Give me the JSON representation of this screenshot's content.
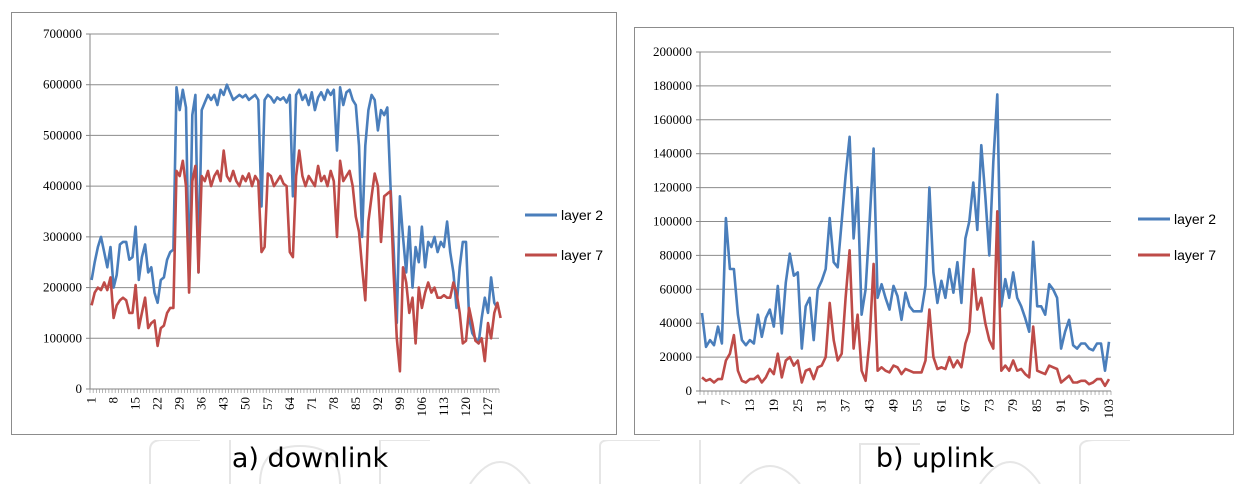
{
  "captions": {
    "a": "a) downlink",
    "b": "b) uplink"
  },
  "colors": {
    "layer2": "#4a7ebb",
    "layer7": "#be4b48",
    "grid": "#8c8c8c",
    "axis": "#868686"
  },
  "chart_data": [
    {
      "type": "line",
      "caption": "a) downlink",
      "ylim": [
        0,
        700000
      ],
      "y_ticks": [
        "0",
        "100000",
        "200000",
        "300000",
        "400000",
        "500000",
        "600000",
        "700000"
      ],
      "x_ticks": [
        "1",
        "8",
        "15",
        "22",
        "29",
        "36",
        "43",
        "50",
        "57",
        "64",
        "71",
        "78",
        "85",
        "92",
        "99",
        "106",
        "113",
        "120",
        "127"
      ],
      "x_range": [
        1,
        130
      ],
      "grid": true,
      "legend_position": "right",
      "series": [
        {
          "name": "layer 2",
          "color": "#4a7ebb",
          "values": [
            215000,
            250000,
            280000,
            300000,
            270000,
            240000,
            280000,
            200000,
            225000,
            285000,
            290000,
            290000,
            255000,
            260000,
            320000,
            215000,
            260000,
            285000,
            230000,
            240000,
            190000,
            170000,
            215000,
            220000,
            255000,
            270000,
            275000,
            595000,
            550000,
            590000,
            555000,
            200000,
            540000,
            580000,
            230000,
            550000,
            565000,
            580000,
            570000,
            580000,
            560000,
            590000,
            580000,
            600000,
            585000,
            570000,
            575000,
            580000,
            575000,
            580000,
            570000,
            575000,
            580000,
            570000,
            360000,
            570000,
            580000,
            575000,
            565000,
            575000,
            570000,
            575000,
            565000,
            580000,
            380000,
            580000,
            590000,
            570000,
            580000,
            560000,
            585000,
            550000,
            575000,
            585000,
            570000,
            590000,
            580000,
            590000,
            470000,
            595000,
            560000,
            585000,
            590000,
            570000,
            560000,
            480000,
            300000,
            480000,
            550000,
            580000,
            570000,
            510000,
            550000,
            540000,
            555000,
            400000,
            280000,
            130000,
            380000,
            300000,
            230000,
            320000,
            200000,
            280000,
            250000,
            320000,
            240000,
            290000,
            280000,
            300000,
            270000,
            290000,
            280000,
            330000,
            270000,
            230000,
            160000,
            240000,
            290000,
            290000,
            140000,
            110000,
            100000,
            90000,
            140000,
            180000,
            150000,
            220000,
            170000,
            160000
          ]
        },
        {
          "name": "layer 7",
          "color": "#be4b48",
          "values": [
            165000,
            190000,
            200000,
            195000,
            210000,
            195000,
            220000,
            140000,
            165000,
            175000,
            180000,
            175000,
            150000,
            150000,
            205000,
            120000,
            150000,
            180000,
            120000,
            130000,
            135000,
            85000,
            120000,
            125000,
            150000,
            160000,
            160000,
            430000,
            420000,
            450000,
            400000,
            190000,
            410000,
            440000,
            230000,
            420000,
            410000,
            430000,
            400000,
            420000,
            430000,
            410000,
            470000,
            420000,
            410000,
            430000,
            410000,
            400000,
            420000,
            410000,
            425000,
            400000,
            420000,
            410000,
            270000,
            280000,
            425000,
            420000,
            400000,
            410000,
            420000,
            405000,
            400000,
            270000,
            260000,
            420000,
            470000,
            420000,
            400000,
            420000,
            410000,
            400000,
            440000,
            410000,
            420000,
            400000,
            430000,
            410000,
            300000,
            450000,
            410000,
            420000,
            430000,
            400000,
            340000,
            310000,
            240000,
            175000,
            330000,
            380000,
            425000,
            400000,
            290000,
            380000,
            385000,
            390000,
            230000,
            100000,
            35000,
            240000,
            210000,
            150000,
            180000,
            90000,
            200000,
            160000,
            190000,
            210000,
            190000,
            200000,
            180000,
            180000,
            185000,
            180000,
            180000,
            210000,
            190000,
            150000,
            90000,
            95000,
            160000,
            130000,
            95000,
            90000,
            100000,
            55000,
            130000,
            100000,
            150000,
            170000,
            140000
          ]
        }
      ]
    },
    {
      "type": "line",
      "caption": "b) uplink",
      "ylim": [
        0,
        200000
      ],
      "y_ticks": [
        "0",
        "20000",
        "40000",
        "60000",
        "80000",
        "100000",
        "120000",
        "140000",
        "160000",
        "180000",
        "200000"
      ],
      "x_ticks": [
        "1",
        "7",
        "13",
        "19",
        "25",
        "31",
        "37",
        "43",
        "49",
        "55",
        "61",
        "67",
        "73",
        "79",
        "85",
        "91",
        "97",
        "103"
      ],
      "x_range": [
        1,
        103
      ],
      "grid": true,
      "legend_position": "right",
      "series": [
        {
          "name": "layer 2",
          "color": "#4a7ebb",
          "values": [
            46000,
            26000,
            30000,
            27000,
            38000,
            28000,
            102000,
            72000,
            72000,
            45000,
            30000,
            27000,
            30000,
            28000,
            45000,
            32000,
            43000,
            48000,
            38000,
            62000,
            34000,
            64000,
            81000,
            68000,
            70000,
            25000,
            50000,
            55000,
            30000,
            60000,
            65000,
            72000,
            102000,
            76000,
            73000,
            100000,
            127000,
            150000,
            90000,
            120000,
            45000,
            60000,
            100000,
            143000,
            55000,
            63000,
            55000,
            48000,
            62000,
            56000,
            42000,
            58000,
            50000,
            47000,
            47000,
            47000,
            62000,
            120000,
            70000,
            52000,
            65000,
            55000,
            72000,
            58000,
            76000,
            52000,
            90000,
            100000,
            123000,
            95000,
            145000,
            115000,
            80000,
            135000,
            175000,
            50000,
            66000,
            55000,
            70000,
            55000,
            50000,
            43000,
            35000,
            88000,
            50000,
            50000,
            45000,
            63000,
            60000,
            55000,
            25000,
            35000,
            42000,
            27000,
            25000,
            28000,
            28000,
            25000,
            24000,
            28000,
            28000,
            12000,
            29000
          ]
        },
        {
          "name": "layer 7",
          "color": "#be4b48",
          "values": [
            8000,
            6000,
            7000,
            5000,
            7000,
            7000,
            18000,
            22000,
            33000,
            12000,
            6000,
            5000,
            7000,
            7000,
            9000,
            5000,
            8000,
            13000,
            10000,
            22000,
            8000,
            18000,
            20000,
            15000,
            18000,
            5000,
            12000,
            13000,
            7000,
            14000,
            15000,
            20000,
            52000,
            30000,
            18000,
            22000,
            55000,
            83000,
            25000,
            45000,
            12000,
            6000,
            30000,
            75000,
            12000,
            14000,
            12000,
            11000,
            15000,
            14000,
            10000,
            13000,
            12000,
            11000,
            11000,
            11000,
            18000,
            48000,
            20000,
            13000,
            14000,
            13000,
            20000,
            14000,
            18000,
            14000,
            28000,
            35000,
            72000,
            48000,
            55000,
            40000,
            30000,
            25000,
            106000,
            12000,
            15000,
            12000,
            18000,
            12000,
            13000,
            10000,
            8000,
            38000,
            12000,
            11000,
            10000,
            15000,
            14000,
            13000,
            5000,
            7000,
            9000,
            5000,
            5000,
            6000,
            6000,
            4000,
            5000,
            7000,
            7000,
            3000,
            7000
          ]
        }
      ]
    }
  ]
}
